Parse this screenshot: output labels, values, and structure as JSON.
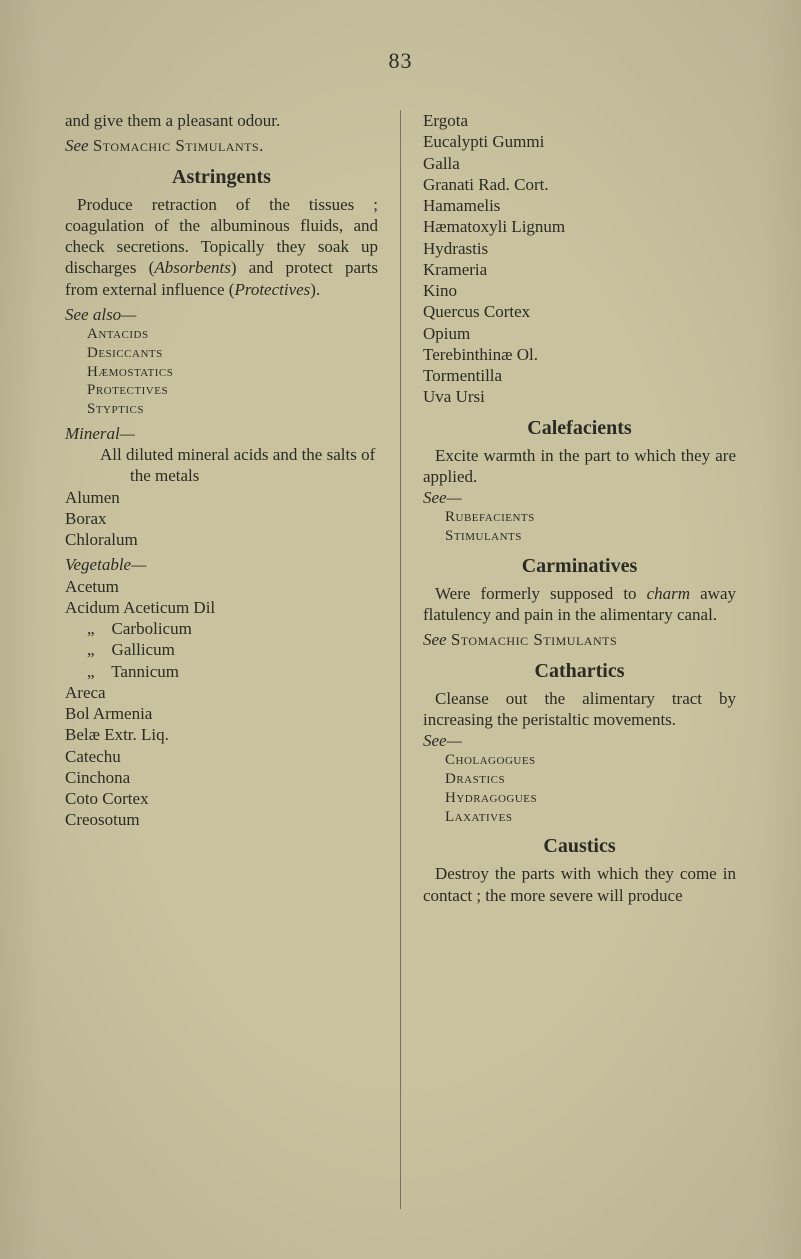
{
  "page_number": "83",
  "left": {
    "intro": "and give them a pleasant odour.",
    "see_stomachic": "See Stomachic Stimulants.",
    "h_astringents": "Astringents",
    "astringents_body": "Produce retraction of the tissues ; coagulation of the albuminous fluids, and check secretions. Topically they soak up discharges (Absorb­ents) and protect parts from external influence (Protec­tives).",
    "see_also": "See also—",
    "antacids": "Antacids",
    "desiccants": "Desiccants",
    "haemostatics": "Hæmostatics",
    "protectives": "Protectives",
    "styptics": "Styptics",
    "mineral": "Mineral—",
    "mineral_line": "All diluted mineral acids and the salts of the metals",
    "alumen": "Alumen",
    "borax": "Borax",
    "chloralum": "Chloralum",
    "vegetable": "Vegetable—",
    "acetum": "Acetum",
    "acidum": "Acidum Aceticum Dil",
    "carbolicum": "„    Carbolicum",
    "gallicum": "„    Gallicum",
    "tannicum": "„    Tannicum",
    "areca": "Areca",
    "bol": "Bol Armenia",
    "belae": "Belæ Extr. Liq.",
    "catechu": "Catechu",
    "cinchona": "Cinchona",
    "coto": "Coto Cortex",
    "creosotum": "Creosotum"
  },
  "right": {
    "ergota": "Ergota",
    "eucalypti": "Eucalypti Gummi",
    "galla": "Galla",
    "granati": "Granati Rad. Cort.",
    "hamamelis": "Hamamelis",
    "haematoxyli": "Hæmatoxyli Lignum",
    "hydrastis": "Hydrastis",
    "krameria": "Krameria",
    "kino": "Kino",
    "quercus": "Quercus Cortex",
    "opium": "Opium",
    "terebinthinae": "Terebinthinæ Ol.",
    "tormentilla": "Tormentilla",
    "uva": "Uva Ursi",
    "h_calefacients": "Calefacients",
    "calefacients_body": "Excite warmth in the part to which they are applied.",
    "see1": "See—",
    "rubefacients": "Rubefacients",
    "stimulants1": "Stimulants",
    "h_carminatives": "Carminatives",
    "carminatives_body": "Were formerly supposed to charm away flatulency and pain in the alimentary canal.",
    "see_stom": "See Stomachic Stimulants",
    "h_cathartics": "Cathartics",
    "cathartics_body": "Cleanse out the alimentary tract by increasing the peri­staltic movements.",
    "see2": "See—",
    "cholagogues": "Cholagogues",
    "drastics": "Drastics",
    "hydragogues": "Hydragogues",
    "laxatives": "Laxatives",
    "h_caustics": "Caustics",
    "caustics_body": "Destroy the parts with which they come in contact ; the more severe will produce"
  }
}
